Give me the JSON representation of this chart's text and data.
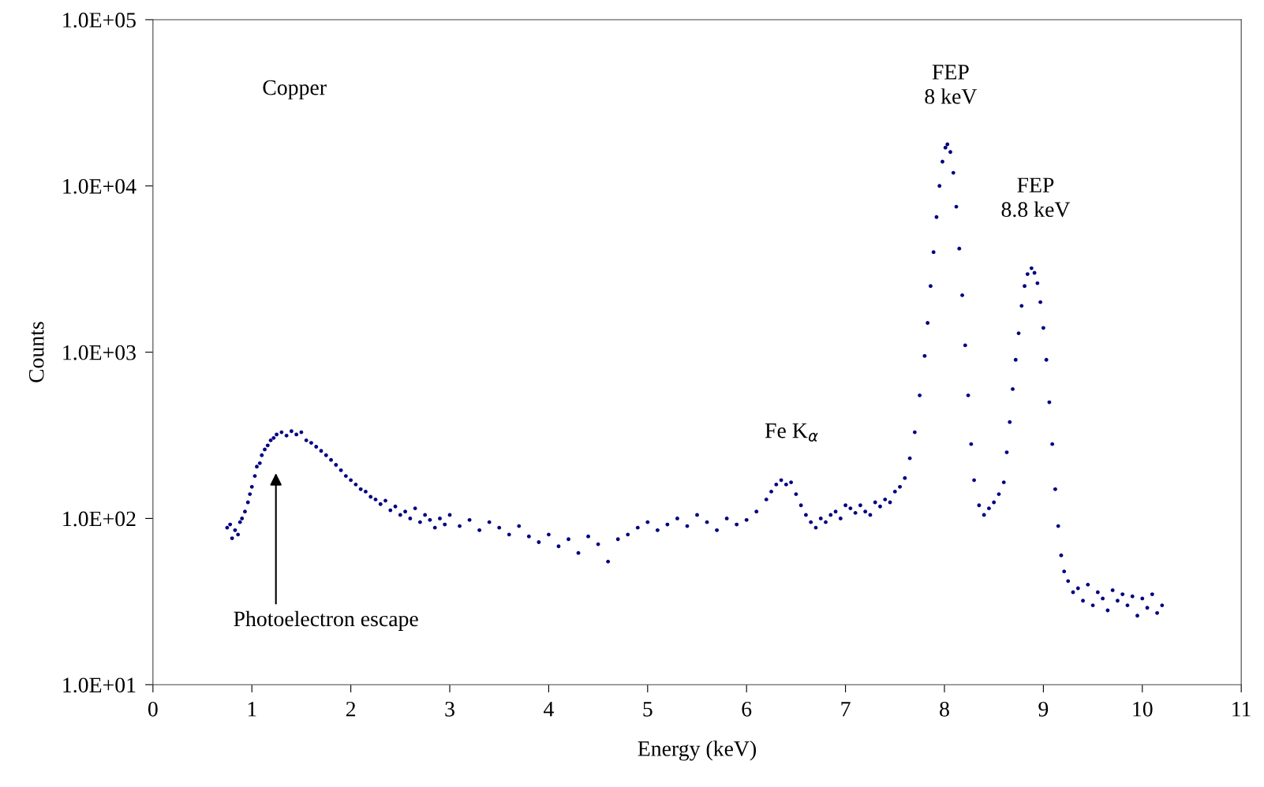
{
  "chart_data": {
    "type": "scatter",
    "xlabel": "Energy (keV)",
    "ylabel": "Counts",
    "log": "y",
    "marker": "circle",
    "grid": false,
    "legend": false,
    "xlim": [
      0,
      11
    ],
    "xticks": [
      0,
      1,
      2,
      3,
      4,
      5,
      6,
      7,
      8,
      9,
      10,
      11
    ],
    "ylim": [
      10,
      100000
    ],
    "yticks": [
      {
        "value": 10,
        "label": "1.0E+01"
      },
      {
        "value": 100,
        "label": "1.0E+02"
      },
      {
        "value": 1000,
        "label": "1.0E+03"
      },
      {
        "value": 10000,
        "label": "1.0E+04"
      },
      {
        "value": 100000,
        "label": "1.0E+05"
      }
    ],
    "annotations": [
      "Copper",
      "FEP\n8 keV",
      "FEP\n8.8 keV",
      "Fe K$_{α}$",
      "Photoelectron escape"
    ],
    "series": [
      {
        "color": "#000080",
        "x": [
          0.75,
          0.78,
          0.8,
          0.83,
          0.86,
          0.88,
          0.9,
          0.93,
          0.96,
          0.98,
          1.0,
          1.03,
          1.05,
          1.08,
          1.1,
          1.13,
          1.16,
          1.19,
          1.22,
          1.25,
          1.3,
          1.35,
          1.4,
          1.45,
          1.5,
          1.55,
          1.6,
          1.65,
          1.7,
          1.75,
          1.8,
          1.85,
          1.9,
          1.95,
          2.0,
          2.05,
          2.1,
          2.15,
          2.2,
          2.25,
          2.3,
          2.35,
          2.4,
          2.45,
          2.5,
          2.55,
          2.6,
          2.65,
          2.7,
          2.75,
          2.8,
          2.85,
          2.9,
          2.95,
          3.0,
          3.1,
          3.2,
          3.3,
          3.4,
          3.5,
          3.6,
          3.7,
          3.8,
          3.9,
          4.0,
          4.1,
          4.2,
          4.3,
          4.4,
          4.5,
          4.6,
          4.7,
          4.8,
          4.9,
          5.0,
          5.1,
          5.2,
          5.3,
          5.4,
          5.5,
          5.6,
          5.7,
          5.8,
          5.9,
          6.0,
          6.1,
          6.2,
          6.25,
          6.3,
          6.35,
          6.4,
          6.45,
          6.5,
          6.55,
          6.6,
          6.65,
          6.7,
          6.75,
          6.8,
          6.85,
          6.9,
          6.95,
          7.0,
          7.05,
          7.1,
          7.15,
          7.2,
          7.25,
          7.3,
          7.35,
          7.4,
          7.45,
          7.5,
          7.55,
          7.6,
          7.65,
          7.7,
          7.75,
          7.8,
          7.83,
          7.86,
          7.89,
          7.92,
          7.95,
          7.98,
          8.01,
          8.03,
          8.06,
          8.09,
          8.12,
          8.15,
          8.18,
          8.21,
          8.24,
          8.27,
          8.3,
          8.35,
          8.4,
          8.45,
          8.5,
          8.55,
          8.6,
          8.63,
          8.66,
          8.69,
          8.72,
          8.75,
          8.78,
          8.81,
          8.84,
          8.88,
          8.91,
          8.94,
          8.97,
          9.0,
          9.03,
          9.06,
          9.09,
          9.12,
          9.15,
          9.18,
          9.21,
          9.25,
          9.3,
          9.35,
          9.4,
          9.45,
          9.5,
          9.55,
          9.6,
          9.65,
          9.7,
          9.75,
          9.8,
          9.85,
          9.9,
          9.95,
          10.0,
          10.05,
          10.1,
          10.15,
          10.2
        ],
        "values": [
          88,
          92,
          76,
          85,
          80,
          95,
          100,
          110,
          125,
          140,
          155,
          180,
          205,
          215,
          240,
          260,
          275,
          295,
          305,
          320,
          330,
          315,
          335,
          320,
          330,
          295,
          285,
          270,
          255,
          240,
          225,
          210,
          195,
          180,
          170,
          160,
          150,
          145,
          135,
          130,
          122,
          128,
          112,
          118,
          105,
          110,
          100,
          115,
          95,
          105,
          98,
          88,
          100,
          92,
          105,
          90,
          98,
          85,
          95,
          88,
          80,
          90,
          78,
          72,
          80,
          68,
          75,
          62,
          78,
          70,
          55,
          75,
          80,
          88,
          95,
          85,
          92,
          100,
          90,
          105,
          95,
          85,
          100,
          92,
          98,
          110,
          130,
          145,
          160,
          170,
          160,
          165,
          140,
          120,
          105,
          95,
          88,
          100,
          95,
          105,
          110,
          100,
          120,
          115,
          108,
          120,
          110,
          105,
          125,
          118,
          130,
          125,
          145,
          155,
          175,
          230,
          330,
          550,
          950,
          1500,
          2500,
          4000,
          6500,
          10000,
          14000,
          17000,
          17800,
          16000,
          12000,
          7500,
          4200,
          2200,
          1100,
          550,
          280,
          170,
          120,
          105,
          115,
          125,
          140,
          165,
          250,
          380,
          600,
          900,
          1300,
          1900,
          2500,
          2950,
          3200,
          3000,
          2600,
          2000,
          1400,
          900,
          500,
          280,
          150,
          90,
          60,
          48,
          42,
          36,
          38,
          32,
          40,
          30,
          36,
          33,
          28,
          37,
          32,
          35,
          30,
          34,
          26,
          33,
          29,
          35,
          27,
          30
        ]
      }
    ]
  }
}
